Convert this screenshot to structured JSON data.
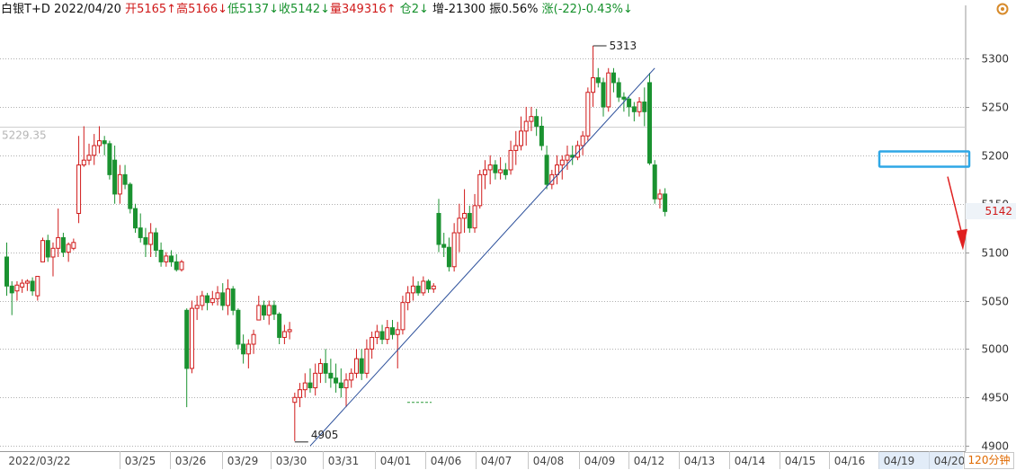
{
  "header": {
    "symbol": "白银T+D",
    "date": "2022/04/20",
    "open": "开5165↑",
    "high": "高5166↓",
    "low": "低5137↓",
    "close": "收5142↓",
    "volume": "量349316↑",
    "position": "仓2↓",
    "increase": "增-21300",
    "amplitude": "振0.56%",
    "change": "涨(-22)-0.43%↓"
  },
  "timeframe_label": "120分钟",
  "colors": {
    "up": "#d01a1a",
    "down": "#1a9230",
    "grid": "#b0b0b0",
    "trendline": "#2a4e9a",
    "highlight_box": "#2ea7e6",
    "arrow": "#e02020"
  },
  "chart_data": {
    "type": "candlestick",
    "ylim": [
      4900,
      5300
    ],
    "y_ticks": [
      4900,
      4950,
      5000,
      5050,
      5100,
      5150,
      5200,
      5250,
      5300
    ],
    "x_labels": [
      "2022/03/22",
      "03/25",
      "03/26",
      "03/29",
      "03/30",
      "03/31",
      "04/01",
      "04/06",
      "04/07",
      "04/08",
      "04/09",
      "04/12",
      "04/13",
      "04/14",
      "04/15",
      "04/16",
      "04/19",
      "04/20"
    ],
    "reference_level": {
      "label": "5229.35",
      "value": 5229.35
    },
    "last_price": "5142",
    "annotations": [
      {
        "label": "5313",
        "value": 5313,
        "kind": "high"
      },
      {
        "label": "4905",
        "value": 4905,
        "kind": "low"
      }
    ],
    "trendline": [
      {
        "bar": 59,
        "value": 4900
      },
      {
        "bar": 126,
        "value": 5290
      }
    ],
    "candles": [
      [
        5095,
        5110,
        5055,
        5065
      ],
      [
        5065,
        5070,
        5035,
        5058
      ],
      [
        5060,
        5070,
        5050,
        5066
      ],
      [
        5064,
        5072,
        5058,
        5068
      ],
      [
        5068,
        5072,
        5060,
        5070
      ],
      [
        5070,
        5074,
        5055,
        5060
      ],
      [
        5055,
        5075,
        5050,
        5075
      ],
      [
        5090,
        5115,
        5090,
        5112
      ],
      [
        5112,
        5118,
        5090,
        5095
      ],
      [
        5095,
        5110,
        5075,
        5104
      ],
      [
        5104,
        5145,
        5095,
        5115
      ],
      [
        5115,
        5120,
        5095,
        5100
      ],
      [
        5100,
        5110,
        5090,
        5108
      ],
      [
        5104,
        5114,
        5102,
        5110
      ],
      [
        5140,
        5220,
        5130,
        5190
      ],
      [
        5190,
        5230,
        5188,
        5195
      ],
      [
        5195,
        5212,
        5190,
        5200
      ],
      [
        5200,
        5222,
        5190,
        5210
      ],
      [
        5210,
        5230,
        5202,
        5215
      ],
      [
        5215,
        5220,
        5200,
        5212
      ],
      [
        5212,
        5215,
        5175,
        5180
      ],
      [
        5195,
        5210,
        5150,
        5160
      ],
      [
        5160,
        5190,
        5150,
        5180
      ],
      [
        5180,
        5190,
        5165,
        5170
      ],
      [
        5170,
        5172,
        5140,
        5145
      ],
      [
        5145,
        5150,
        5120,
        5125
      ],
      [
        5125,
        5140,
        5110,
        5115
      ],
      [
        5115,
        5125,
        5095,
        5108
      ],
      [
        5108,
        5130,
        5095,
        5120
      ],
      [
        5120,
        5125,
        5095,
        5102
      ],
      [
        5102,
        5110,
        5085,
        5090
      ],
      [
        5090,
        5100,
        5085,
        5096
      ],
      [
        5096,
        5102,
        5085,
        5090
      ],
      [
        5090,
        5098,
        5080,
        5082
      ],
      [
        5082,
        5092,
        5080,
        5090
      ],
      [
        5040,
        5042,
        4940,
        4980
      ],
      [
        4980,
        5050,
        4975,
        5042
      ],
      [
        5042,
        5055,
        5030,
        5045
      ],
      [
        5045,
        5060,
        5040,
        5055
      ],
      [
        5055,
        5058,
        5040,
        5048
      ],
      [
        5048,
        5060,
        5045,
        5052
      ],
      [
        5052,
        5065,
        5045,
        5058
      ],
      [
        5058,
        5068,
        5040,
        5045
      ],
      [
        5045,
        5072,
        5035,
        5062
      ],
      [
        5062,
        5065,
        5035,
        5040
      ],
      [
        5040,
        5042,
        5000,
        5005
      ],
      [
        5005,
        5015,
        4985,
        4995
      ],
      [
        4995,
        5010,
        4980,
        5005
      ],
      [
        5005,
        5020,
        4995,
        5015
      ],
      [
        5030,
        5055,
        5030,
        5045
      ],
      [
        5045,
        5050,
        5030,
        5035
      ],
      [
        5035,
        5050,
        5025,
        5045
      ],
      [
        5045,
        5050,
        5030,
        5036
      ],
      [
        5036,
        5038,
        5005,
        5012
      ],
      [
        5012,
        5025,
        5005,
        5018
      ],
      [
        5018,
        5028,
        5010,
        5020
      ],
      [
        4945,
        4955,
        4905,
        4950
      ],
      [
        4950,
        4965,
        4940,
        4958
      ],
      [
        4958,
        4975,
        4950,
        4965
      ],
      [
        4965,
        4980,
        4955,
        4960
      ],
      [
        4960,
        4985,
        4952,
        4975
      ],
      [
        4975,
        4990,
        4965,
        4985
      ],
      [
        4985,
        5000,
        4965,
        4975
      ],
      [
        4975,
        4990,
        4960,
        4970
      ],
      [
        4970,
        4985,
        4955,
        4965
      ],
      [
        4965,
        4980,
        4950,
        4960
      ],
      [
        4960,
        4975,
        4940,
        4968
      ],
      [
        4968,
        4980,
        4960,
        4975
      ],
      [
        4975,
        5000,
        4970,
        4990
      ],
      [
        4990,
        5000,
        4968,
        4975
      ],
      [
        4975,
        5010,
        4970,
        5000
      ],
      [
        5000,
        5018,
        4990,
        5012
      ],
      [
        5012,
        5025,
        5005,
        5018
      ],
      [
        5018,
        5025,
        5005,
        5010
      ],
      [
        5010,
        5030,
        5005,
        5022
      ],
      [
        5022,
        5030,
        5010,
        5015
      ],
      [
        5015,
        5028,
        4980,
        5020
      ],
      [
        5020,
        5055,
        5015,
        5048
      ],
      [
        5048,
        5065,
        5040,
        5058
      ],
      [
        5058,
        5075,
        5050,
        5065
      ],
      [
        5065,
        5070,
        5055,
        5058
      ],
      [
        5058,
        5075,
        5055,
        5070
      ],
      [
        5070,
        5072,
        5058,
        5062
      ],
      [
        5062,
        5068,
        5058,
        5065
      ],
      [
        5140,
        5155,
        5100,
        5108
      ],
      [
        5108,
        5120,
        5095,
        5105
      ],
      [
        5105,
        5115,
        5080,
        5085
      ],
      [
        5085,
        5130,
        5080,
        5120
      ],
      [
        5120,
        5150,
        5100,
        5135
      ],
      [
        5135,
        5165,
        5120,
        5140
      ],
      [
        5140,
        5148,
        5120,
        5125
      ],
      [
        5125,
        5160,
        5120,
        5148
      ],
      [
        5148,
        5185,
        5145,
        5180
      ],
      [
        5180,
        5195,
        5165,
        5185
      ],
      [
        5185,
        5200,
        5170,
        5190
      ],
      [
        5190,
        5195,
        5175,
        5182
      ],
      [
        5182,
        5198,
        5175,
        5185
      ],
      [
        5185,
        5192,
        5175,
        5180
      ],
      [
        5185,
        5215,
        5180,
        5205
      ],
      [
        5205,
        5225,
        5190,
        5210
      ],
      [
        5210,
        5240,
        5205,
        5225
      ],
      [
        5225,
        5250,
        5210,
        5235
      ],
      [
        5235,
        5250,
        5225,
        5240
      ],
      [
        5240,
        5248,
        5220,
        5230
      ],
      [
        5230,
        5240,
        5205,
        5210
      ],
      [
        5200,
        5210,
        5165,
        5170
      ],
      [
        5170,
        5185,
        5165,
        5180
      ],
      [
        5180,
        5200,
        5170,
        5190
      ],
      [
        5190,
        5200,
        5175,
        5195
      ],
      [
        5195,
        5210,
        5185,
        5200
      ],
      [
        5200,
        5210,
        5190,
        5198
      ],
      [
        5198,
        5215,
        5195,
        5210
      ],
      [
        5210,
        5225,
        5200,
        5220
      ],
      [
        5220,
        5270,
        5215,
        5265
      ],
      [
        5265,
        5313,
        5250,
        5280
      ],
      [
        5280,
        5290,
        5270,
        5275
      ],
      [
        5275,
        5280,
        5240,
        5250
      ],
      [
        5250,
        5290,
        5245,
        5285
      ],
      [
        5285,
        5290,
        5265,
        5275
      ],
      [
        5275,
        5280,
        5255,
        5260
      ],
      [
        5260,
        5265,
        5245,
        5258
      ],
      [
        5258,
        5260,
        5240,
        5250
      ],
      [
        5250,
        5255,
        5235,
        5245
      ],
      [
        5245,
        5260,
        5240,
        5255
      ],
      [
        5255,
        5270,
        5230,
        5245
      ],
      [
        5275,
        5285,
        5190,
        5192
      ],
      [
        5190,
        5195,
        5150,
        5155
      ],
      [
        5155,
        5165,
        5145,
        5160
      ],
      [
        5160,
        5166,
        5137,
        5142
      ]
    ]
  }
}
